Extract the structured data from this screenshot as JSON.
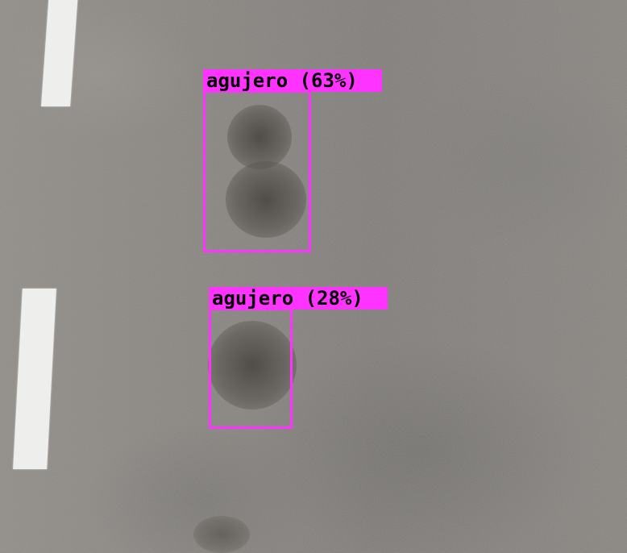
{
  "scene": {
    "description_colors": {
      "asphalt": "#85827e",
      "lane_marking": "#eeeeec",
      "detection_accent": "#ff33ff",
      "label_text": "#000000"
    }
  },
  "detections": [
    {
      "class_label": "agujero",
      "confidence_percent": 63,
      "label_text": "agujero (63%)"
    },
    {
      "class_label": "agujero",
      "confidence_percent": 28,
      "label_text": "agujero (28%)"
    }
  ]
}
